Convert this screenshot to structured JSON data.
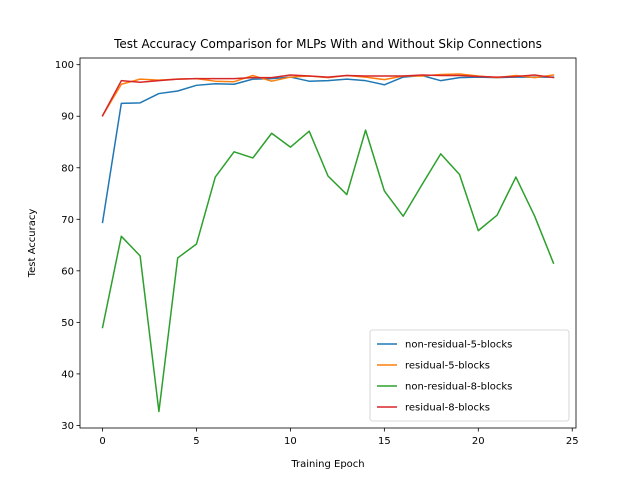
{
  "chart_data": {
    "type": "line",
    "title": "Test Accuracy Comparison for MLPs With and Without Skip Connections",
    "xlabel": "Training Epoch",
    "ylabel": "Test Accuracy",
    "xlim": [
      -1.2,
      25.2
    ],
    "ylim": [
      29.5,
      101.3
    ],
    "xticks": [
      0,
      5,
      10,
      15,
      20,
      25
    ],
    "yticks": [
      30,
      40,
      50,
      60,
      70,
      80,
      90,
      100
    ],
    "grid": false,
    "legend_position": "lower-right",
    "x": [
      0,
      1,
      2,
      3,
      4,
      5,
      6,
      7,
      8,
      9,
      10,
      11,
      12,
      13,
      14,
      15,
      16,
      17,
      18,
      19,
      20,
      21,
      22,
      23,
      24
    ],
    "series": [
      {
        "name": "non-residual-5-blocks",
        "color": "#1f77b4",
        "values": [
          69.4,
          92.5,
          92.6,
          94.4,
          94.9,
          96.0,
          96.3,
          96.2,
          97.2,
          97.3,
          97.6,
          96.8,
          96.9,
          97.2,
          96.9,
          96.1,
          97.6,
          97.9,
          96.9,
          97.5,
          97.6,
          97.5,
          97.6,
          97.6,
          97.6
        ]
      },
      {
        "name": "residual-5-blocks",
        "color": "#ff7f0e",
        "values": [
          90.1,
          96.2,
          97.2,
          97.0,
          97.2,
          97.3,
          96.8,
          96.7,
          97.9,
          96.8,
          97.6,
          97.8,
          97.5,
          97.9,
          97.6,
          97.1,
          97.8,
          97.8,
          98.1,
          98.2,
          97.8,
          97.5,
          97.9,
          97.5,
          98.0
        ]
      },
      {
        "name": "non-residual-8-blocks",
        "color": "#2ca02c",
        "values": [
          49.0,
          66.7,
          62.9,
          32.7,
          62.5,
          65.2,
          78.2,
          83.1,
          81.9,
          86.7,
          84.0,
          87.1,
          78.4,
          74.8,
          87.3,
          75.5,
          70.6,
          76.7,
          82.7,
          78.7,
          67.8,
          70.8,
          78.2,
          70.6,
          61.5
        ]
      },
      {
        "name": "residual-8-blocks",
        "color": "#d62728",
        "values": [
          90.1,
          96.9,
          96.6,
          96.9,
          97.2,
          97.3,
          97.3,
          97.3,
          97.5,
          97.5,
          98.0,
          97.8,
          97.6,
          97.9,
          97.8,
          97.8,
          97.8,
          98.0,
          97.9,
          97.9,
          97.7,
          97.6,
          97.7,
          98.0,
          97.5
        ]
      }
    ]
  }
}
